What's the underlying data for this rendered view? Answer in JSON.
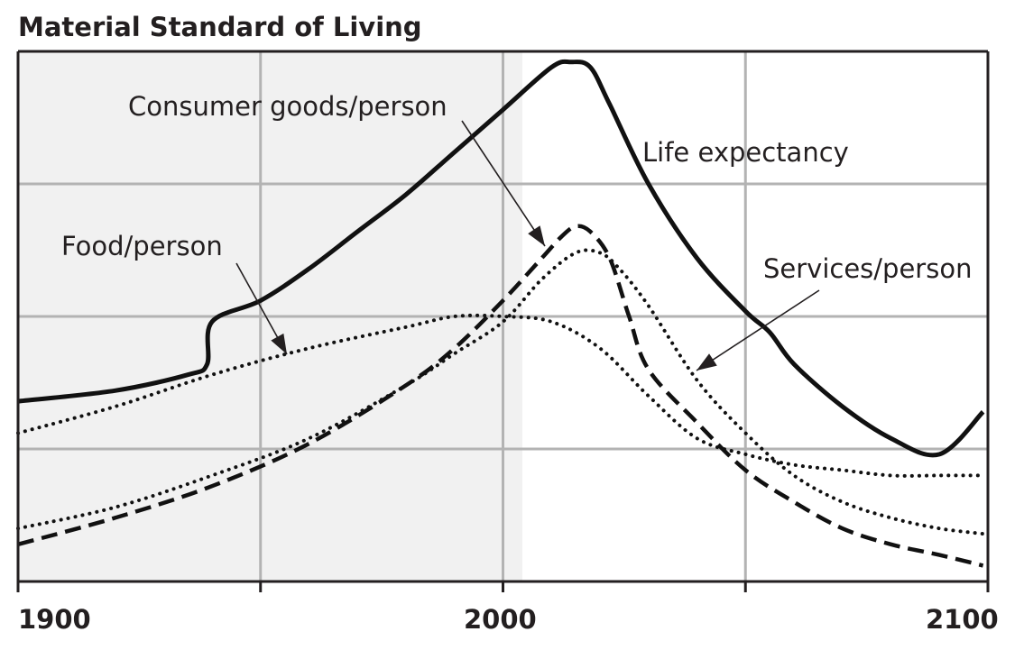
{
  "chart_data": {
    "type": "line",
    "title": "Material Standard of Living",
    "xlabel": "",
    "ylabel": "",
    "xlim": [
      1900,
      2100
    ],
    "ylim": [
      0,
      100
    ],
    "x_ticks": [
      "1900",
      "2000",
      "2100"
    ],
    "grid": true,
    "historical_shading": [
      1900,
      2004
    ],
    "series": [
      {
        "name": "Life expectancy",
        "style": "solid",
        "x": [
          1900,
          1920,
          1935,
          1939,
          1940,
          1950,
          1960,
          1970,
          1980,
          1990,
          2000,
          2010,
          2014,
          2018,
          2022,
          2030,
          2040,
          2050,
          2055,
          2060,
          2070,
          2080,
          2090,
          2099
        ],
        "y": [
          34,
          36,
          39,
          41,
          49,
          53,
          59,
          66,
          73,
          81,
          89,
          97,
          98,
          97,
          90,
          75,
          61,
          51,
          47,
          41,
          33,
          27,
          24,
          32
        ]
      },
      {
        "name": "Food/person",
        "style": "dotted",
        "x": [
          1900,
          1920,
          1940,
          1960,
          1980,
          1990,
          2000,
          2010,
          2020,
          2030,
          2040,
          2050,
          2060,
          2070,
          2080,
          2090,
          2099
        ],
        "y": [
          28,
          33,
          39,
          44,
          48,
          50,
          50,
          49,
          44,
          35,
          27,
          24,
          22,
          21,
          20,
          20,
          20
        ]
      },
      {
        "name": "Consumer goods/person",
        "style": "dashed",
        "x": [
          1900,
          1920,
          1940,
          1960,
          1980,
          1990,
          2000,
          2008,
          2012,
          2015,
          2018,
          2022,
          2026,
          2030,
          2040,
          2050,
          2060,
          2070,
          2080,
          2090,
          2099
        ],
        "y": [
          7,
          12,
          18,
          26,
          37,
          44,
          53,
          61,
          65,
          67,
          66,
          61,
          50,
          40,
          30,
          21,
          15,
          10,
          7,
          5,
          3
        ]
      },
      {
        "name": "Services/person",
        "style": "dotted",
        "x": [
          1900,
          1920,
          1940,
          1960,
          1980,
          1990,
          2000,
          2008,
          2015,
          2020,
          2024,
          2030,
          2040,
          2050,
          2060,
          2070,
          2080,
          2090,
          2099
        ],
        "y": [
          10,
          14,
          20,
          27,
          37,
          43,
          49,
          57,
          62,
          62,
          59,
          52,
          38,
          28,
          20,
          15,
          12,
          10,
          9
        ]
      }
    ],
    "annotations": [
      {
        "text": "Consumer goods/person",
        "series": "Consumer goods/person"
      },
      {
        "text": "Life expectancy",
        "series": "Life expectancy"
      },
      {
        "text": "Food/person",
        "series": "Food/person"
      },
      {
        "text": "Services/person",
        "series": "Services/person"
      }
    ]
  }
}
